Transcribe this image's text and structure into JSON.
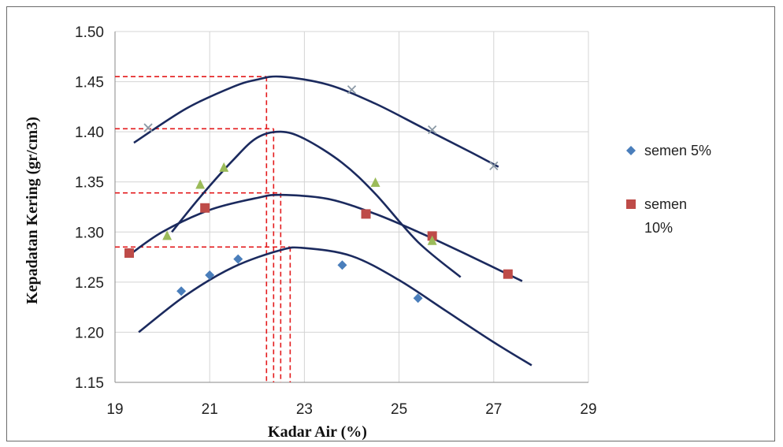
{
  "chart_data": {
    "type": "scatter",
    "title": "",
    "xlabel": "Kadar Air  (%)",
    "ylabel": "Kepadatan Kering (gr/cm3)",
    "xlim": [
      19,
      29
    ],
    "ylim": [
      1.15,
      1.5
    ],
    "x_ticks": [
      19,
      21,
      23,
      25,
      27,
      29
    ],
    "y_ticks": [
      1.15,
      1.2,
      1.25,
      1.3,
      1.35,
      1.4,
      1.45,
      1.5
    ],
    "x_tick_labels": [
      "19",
      "21",
      "23",
      "25",
      "27",
      "29"
    ],
    "y_tick_labels": [
      "1.15",
      "1.20",
      "1.25",
      "1.30",
      "1.35",
      "1.40",
      "1.45",
      "1.50"
    ],
    "grid": "vertical and horizontal gridlines",
    "legend_position": "right",
    "legend": [
      {
        "label_lines": [
          "semen 5%"
        ],
        "marker": "diamond",
        "color": "#4a7ebb"
      },
      {
        "label_lines": [
          "semen",
          "10%"
        ],
        "marker": "square",
        "color": "#be4b48"
      }
    ],
    "series": [
      {
        "name": "semen 5%",
        "marker": "diamond",
        "color": "#4a7ebb",
        "points": [
          [
            20.4,
            1.241
          ],
          [
            21.0,
            1.257
          ],
          [
            21.6,
            1.273
          ],
          [
            23.8,
            1.267
          ],
          [
            25.4,
            1.234
          ]
        ],
        "curve": [
          [
            19.5,
            1.2
          ],
          [
            20.5,
            1.237
          ],
          [
            21.5,
            1.265
          ],
          [
            22.5,
            1.282
          ],
          [
            23.0,
            1.284
          ],
          [
            24.0,
            1.276
          ],
          [
            25.0,
            1.252
          ],
          [
            26.0,
            1.221
          ],
          [
            27.0,
            1.19
          ],
          [
            27.8,
            1.167
          ]
        ]
      },
      {
        "name": "semen 10%",
        "marker": "square",
        "color": "#be4b48",
        "points": [
          [
            19.3,
            1.279
          ],
          [
            20.9,
            1.324
          ],
          [
            24.3,
            1.318
          ],
          [
            25.7,
            1.296
          ],
          [
            27.3,
            1.258
          ]
        ],
        "curve": [
          [
            19.3,
            1.277
          ],
          [
            20.0,
            1.3
          ],
          [
            21.0,
            1.322
          ],
          [
            22.0,
            1.334
          ],
          [
            22.5,
            1.337
          ],
          [
            23.5,
            1.333
          ],
          [
            24.5,
            1.318
          ],
          [
            25.5,
            1.298
          ],
          [
            26.5,
            1.276
          ],
          [
            27.6,
            1.251
          ]
        ]
      },
      {
        "marker": "triangle",
        "color": "#9bbb59",
        "points": [
          [
            20.1,
            1.296
          ],
          [
            20.8,
            1.347
          ],
          [
            21.3,
            1.364
          ],
          [
            24.5,
            1.349
          ],
          [
            25.7,
            1.291
          ]
        ],
        "curve": [
          [
            20.2,
            1.3
          ],
          [
            20.8,
            1.335
          ],
          [
            21.5,
            1.372
          ],
          [
            22.0,
            1.394
          ],
          [
            22.5,
            1.4
          ],
          [
            23.0,
            1.393
          ],
          [
            23.8,
            1.369
          ],
          [
            24.5,
            1.338
          ],
          [
            25.4,
            1.29
          ],
          [
            26.3,
            1.255
          ]
        ]
      },
      {
        "marker": "x",
        "color": "#8c9aa6",
        "points": [
          [
            19.7,
            1.404
          ],
          [
            24.0,
            1.442
          ],
          [
            25.7,
            1.402
          ],
          [
            27.0,
            1.366
          ]
        ],
        "curve": [
          [
            19.4,
            1.389
          ],
          [
            20.5,
            1.423
          ],
          [
            21.5,
            1.445
          ],
          [
            22.0,
            1.452
          ],
          [
            22.5,
            1.455
          ],
          [
            23.5,
            1.447
          ],
          [
            24.5,
            1.428
          ],
          [
            25.5,
            1.404
          ],
          [
            26.5,
            1.38
          ],
          [
            27.1,
            1.365
          ]
        ]
      }
    ],
    "optimum_markers": [
      {
        "x": 22.2,
        "y": 1.455
      },
      {
        "x": 22.35,
        "y": 1.403
      },
      {
        "x": 22.5,
        "y": 1.339
      },
      {
        "x": 22.7,
        "y": 1.285
      }
    ]
  }
}
